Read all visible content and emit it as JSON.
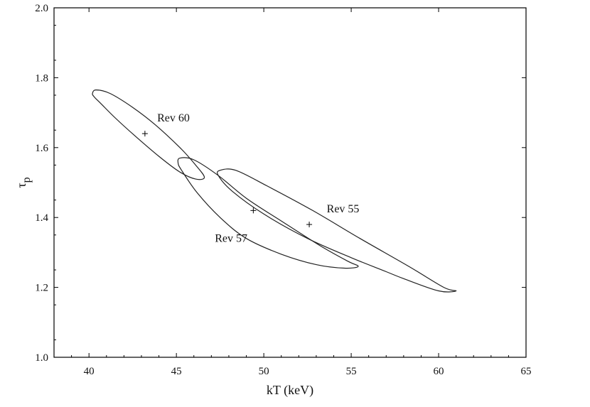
{
  "chart_data": {
    "type": "scatter",
    "xlabel": "kT (keV)",
    "ylabel_main": "τ",
    "ylabel_sub": "p",
    "xlim": [
      38,
      65
    ],
    "ylim": [
      1.0,
      2.0
    ],
    "x_ticks": [
      40,
      45,
      50,
      55,
      60,
      65
    ],
    "y_ticks": [
      1.0,
      1.2,
      1.4,
      1.6,
      1.8,
      2.0
    ],
    "x_tick_labels": [
      "40",
      "45",
      "50",
      "55",
      "60",
      "65"
    ],
    "y_tick_labels": [
      "1.0",
      "1.2",
      "1.4",
      "1.6",
      "1.8",
      "2.0"
    ],
    "grid": false,
    "series": [
      {
        "name": "Rev 60",
        "best_fit": {
          "x": 43.2,
          "y": 1.64
        },
        "contour": [
          [
            40.4,
            1.765
          ],
          [
            41.2,
            1.755
          ],
          [
            42.5,
            1.715
          ],
          [
            43.8,
            1.665
          ],
          [
            45.2,
            1.6
          ],
          [
            46.1,
            1.55
          ],
          [
            46.6,
            1.515
          ],
          [
            46.1,
            1.51
          ],
          [
            45.2,
            1.53
          ],
          [
            44.0,
            1.575
          ],
          [
            42.6,
            1.635
          ],
          [
            41.5,
            1.685
          ],
          [
            40.7,
            1.725
          ],
          [
            40.3,
            1.745
          ],
          [
            40.2,
            1.755
          ]
        ],
        "label_pos": {
          "x": 43.9,
          "y": 1.675
        }
      },
      {
        "name": "Rev 57",
        "best_fit": {
          "x": 49.4,
          "y": 1.42
        },
        "contour": [
          [
            45.2,
            1.57
          ],
          [
            46.0,
            1.565
          ],
          [
            47.4,
            1.52
          ],
          [
            49.0,
            1.455
          ],
          [
            51.0,
            1.39
          ],
          [
            53.2,
            1.32
          ],
          [
            54.8,
            1.275
          ],
          [
            55.4,
            1.26
          ],
          [
            54.6,
            1.255
          ],
          [
            53.0,
            1.265
          ],
          [
            51.0,
            1.295
          ],
          [
            49.0,
            1.34
          ],
          [
            47.5,
            1.4
          ],
          [
            46.2,
            1.47
          ],
          [
            45.3,
            1.535
          ],
          [
            45.1,
            1.555
          ]
        ],
        "label_pos": {
          "x": 47.2,
          "y": 1.33
        }
      },
      {
        "name": "Rev 55",
        "best_fit": {
          "x": 52.6,
          "y": 1.38
        },
        "contour": [
          [
            47.5,
            1.535
          ],
          [
            48.4,
            1.535
          ],
          [
            50.2,
            1.49
          ],
          [
            52.8,
            1.42
          ],
          [
            55.5,
            1.34
          ],
          [
            58.3,
            1.26
          ],
          [
            60.3,
            1.2
          ],
          [
            61.0,
            1.19
          ],
          [
            60.0,
            1.19
          ],
          [
            58.0,
            1.225
          ],
          [
            57.0,
            1.245
          ],
          [
            55.0,
            1.285
          ],
          [
            52.5,
            1.34
          ],
          [
            50.0,
            1.41
          ],
          [
            48.2,
            1.475
          ],
          [
            47.4,
            1.52
          ]
        ],
        "label_pos": {
          "x": 53.6,
          "y": 1.415
        }
      }
    ]
  }
}
